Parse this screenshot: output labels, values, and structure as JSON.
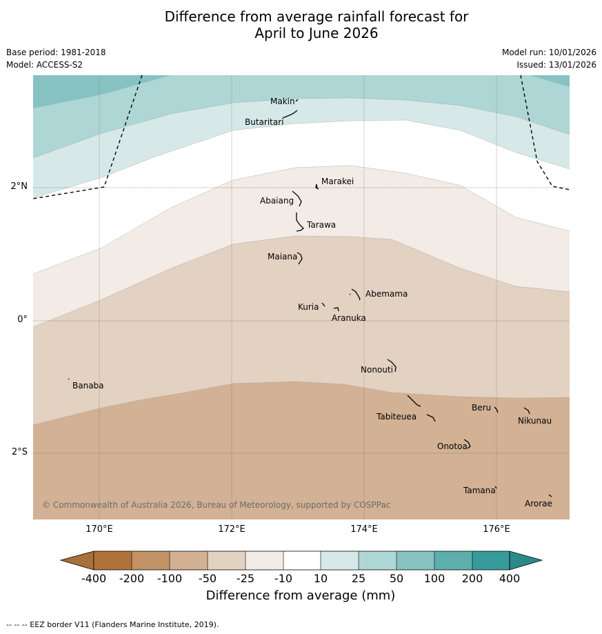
{
  "title_line1": "Difference from average rainfall forecast for",
  "title_line2": "April to June 2026",
  "base_period": "Base period: 1981-2018",
  "model": "Model: ACCESS-S2",
  "model_run": "Model run: 10/01/2026",
  "issued": "Issued: 13/01/2026",
  "copyright": "© Commonwealth of Australia 2026, Bureau of Meteorology, supported by COSPPac",
  "lat_labels": [
    "2°N",
    "0°",
    "2°S"
  ],
  "lon_labels": [
    "170°E",
    "172°E",
    "174°E",
    "176°E"
  ],
  "islands": [
    "Makin",
    "Butaritari",
    "Marakei",
    "Abaiang",
    "Tarawa",
    "Maiana",
    "Abemama",
    "Kuria",
    "Aranuka",
    "Nonouti",
    "Banaba",
    "Tabiteuea",
    "Beru",
    "Nikunau",
    "Onotoa",
    "Tamana",
    "Arorae"
  ],
  "colorbar": {
    "ticks": [
      "-400",
      "-200",
      "-100",
      "-50",
      "-25",
      "-10",
      "10",
      "25",
      "50",
      "100",
      "200",
      "400"
    ],
    "colors": [
      "#a8703a",
      "#b0733c",
      "#c29367",
      "#d2b194",
      "#e3d1c2",
      "#f3ebe6",
      "#ffffff",
      "#d6e9e8",
      "#aed6d5",
      "#86c2c1",
      "#5eaeae",
      "#369b9a",
      "#2c8a89"
    ],
    "title": "Difference from average (mm)"
  },
  "footnote": "--  --  -- EEZ border V11 (Flanders Marine Institute, 2019)."
}
